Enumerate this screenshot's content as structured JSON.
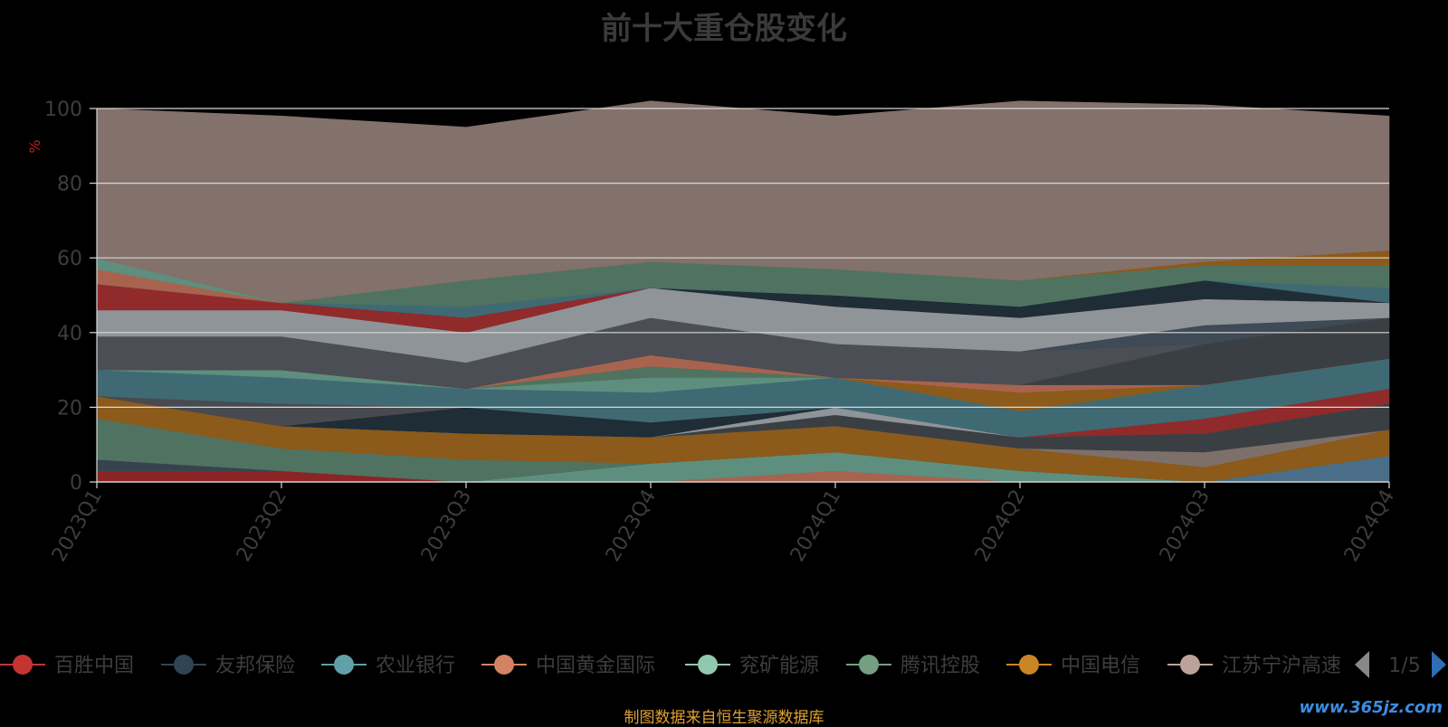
{
  "chart_data": {
    "type": "area",
    "stacked": true,
    "title": "前十大重仓股变化",
    "ylabel": "%",
    "ylim": [
      0,
      100
    ],
    "yticks": [
      0,
      20,
      40,
      60,
      80,
      100
    ],
    "categories": [
      "2023Q1",
      "2023Q2",
      "2023Q3",
      "2023Q4",
      "2024Q1",
      "2024Q2",
      "2024Q3",
      "2024Q4"
    ],
    "series": [
      {
        "name": "百胜中国",
        "color": "#8b2525",
        "values": [
          3,
          3,
          0,
          0,
          0,
          0,
          0,
          0
        ]
      },
      {
        "name": "",
        "color": "#a8634f",
        "values": [
          0,
          0,
          0,
          0,
          3,
          0,
          0,
          0
        ]
      },
      {
        "name": "",
        "color": "#4a6e88",
        "values": [
          0,
          0,
          0,
          0,
          0,
          0,
          0,
          7
        ]
      },
      {
        "name": "兖矿能源",
        "color": "#5e8f7e",
        "values": [
          0,
          0,
          0,
          5,
          5,
          3,
          0,
          0
        ]
      },
      {
        "name": "",
        "color": "#36424d",
        "values": [
          3,
          0,
          0,
          0,
          0,
          0,
          0,
          0
        ]
      },
      {
        "name": "腾讯控股",
        "color": "#4f7360",
        "values": [
          11,
          6,
          6,
          0,
          0,
          0,
          0,
          0
        ]
      },
      {
        "name": "中国电信",
        "color": "#8c5a1a",
        "values": [
          6,
          6,
          7,
          7,
          7,
          6,
          4,
          7
        ]
      },
      {
        "name": "",
        "color": "#7d706a",
        "values": [
          0,
          0,
          0,
          0,
          0,
          0,
          4,
          0
        ]
      },
      {
        "name": "",
        "color": "#3a3f44",
        "values": [
          0,
          0,
          0,
          0,
          3,
          3,
          5,
          7
        ]
      },
      {
        "name": "",
        "color": "#8f9499",
        "values": [
          0,
          0,
          0,
          0,
          2,
          0,
          0,
          0
        ]
      },
      {
        "name": "",
        "color": "#1f2d36",
        "values": [
          0,
          0,
          7,
          4,
          0,
          0,
          0,
          0
        ]
      },
      {
        "name": "",
        "color": "#912a2a",
        "values": [
          0,
          0,
          0,
          0,
          0,
          0,
          4,
          4
        ]
      },
      {
        "name": "",
        "color": "#484a50",
        "values": [
          0,
          6,
          0,
          0,
          0,
          0,
          0,
          0
        ]
      },
      {
        "name": "农业银行",
        "color": "#3f6a74",
        "values": [
          7,
          7,
          5,
          8,
          8,
          7,
          9,
          8
        ]
      },
      {
        "name": "",
        "color": "#5e8f7e",
        "values": [
          0,
          2,
          0,
          4,
          0,
          0,
          0,
          0
        ]
      },
      {
        "name": "",
        "color": "#4f7360",
        "values": [
          0,
          0,
          0,
          3,
          0,
          0,
          0,
          0
        ]
      },
      {
        "name": "",
        "color": "#8c5a1a",
        "values": [
          0,
          0,
          0,
          0,
          0,
          5,
          0,
          0
        ]
      },
      {
        "name": "",
        "color": "#a8634f",
        "values": [
          0,
          0,
          0,
          3,
          0,
          0,
          0,
          0
        ]
      },
      {
        "name": "",
        "color": "#a8634f",
        "values": [
          0,
          0,
          0,
          0,
          0,
          2,
          0,
          0
        ]
      },
      {
        "name": "",
        "color": "#3a3f44",
        "values": [
          0,
          0,
          0,
          0,
          0,
          0,
          11,
          11
        ]
      },
      {
        "name": "",
        "color": "#4b4e55",
        "values": [
          9,
          9,
          7,
          10,
          9,
          9,
          0,
          0
        ]
      },
      {
        "name": "",
        "color": "#3e4a55",
        "values": [
          0,
          0,
          0,
          0,
          0,
          0,
          5,
          0
        ]
      },
      {
        "name": "",
        "color": "#8f9499",
        "values": [
          7,
          7,
          8,
          8,
          10,
          9,
          7,
          4
        ]
      },
      {
        "name": "",
        "color": "#912a2a",
        "values": [
          7,
          2,
          4,
          0,
          0,
          0,
          0,
          0
        ]
      },
      {
        "name": "",
        "color": "#1f2d36",
        "values": [
          0,
          0,
          0,
          0,
          3,
          3,
          5,
          0
        ]
      },
      {
        "name": "",
        "color": "#3f6a74",
        "values": [
          0,
          0,
          3,
          0,
          0,
          0,
          0,
          4
        ]
      },
      {
        "name": "",
        "color": "#4f7360",
        "values": [
          0,
          0,
          7,
          7,
          7,
          7,
          4,
          6
        ]
      },
      {
        "name": "",
        "color": "#a8634f",
        "values": [
          4,
          0,
          0,
          0,
          0,
          0,
          0,
          0
        ]
      },
      {
        "name": "",
        "color": "#5e8f7e",
        "values": [
          3,
          0,
          0,
          0,
          0,
          0,
          0,
          0
        ]
      },
      {
        "name": "",
        "color": "#8c5a1a",
        "values": [
          0,
          0,
          0,
          0,
          0,
          0,
          1,
          4
        ]
      },
      {
        "name": "江苏宁沪高速",
        "color": "#83716b",
        "values": [
          40,
          50,
          41,
          43,
          41,
          48,
          42,
          36
        ]
      }
    ]
  },
  "legend": {
    "items": [
      {
        "label": "百胜中国",
        "color": "#c23531"
      },
      {
        "label": "友邦保险",
        "color": "#2f4554"
      },
      {
        "label": "农业银行",
        "color": "#61a0a8"
      },
      {
        "label": "中国黄金国际",
        "color": "#d48265"
      },
      {
        "label": "兖矿能源",
        "color": "#91c7ae"
      },
      {
        "label": "腾讯控股",
        "color": "#749f83"
      },
      {
        "label": "中国电信",
        "color": "#ca8622"
      },
      {
        "label": "江苏宁沪高速",
        "color": "#bda29a"
      }
    ],
    "page_indicator": "1/5"
  },
  "source": "制图数据来自恒生聚源数据库",
  "watermark": "www.365jz.com"
}
